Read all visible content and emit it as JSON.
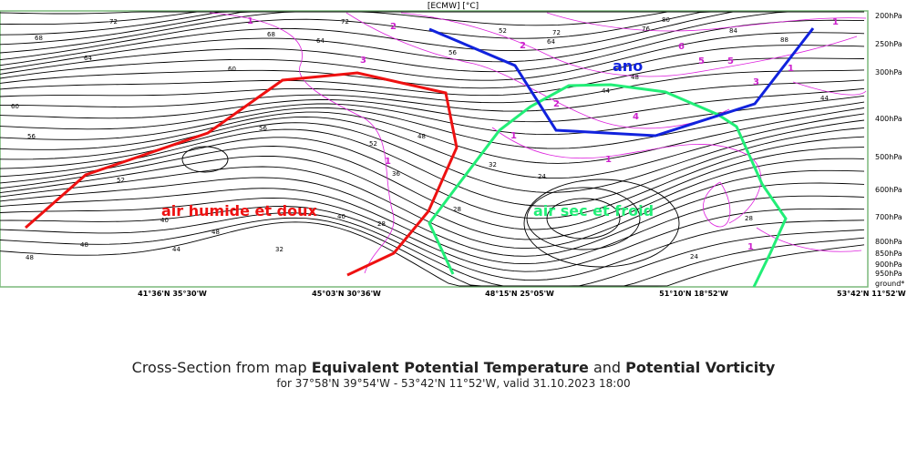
{
  "header_label": "[ECMW] [°C]",
  "pressure_levels": [
    "200hPa",
    "250hPa",
    "300hPa",
    "400hPa",
    "500hPa",
    "600hPa",
    "700hPa",
    "800hPa",
    "850hPa",
    "900hPa",
    "950hPa",
    "ground*"
  ],
  "x_ticks": [
    "41°36'N 35°30'W",
    "45°03'N 30°36'W",
    "48°15'N 25°05'W",
    "51°10'N 18°52'W",
    "53°42'N 11°52'W"
  ],
  "annotations": {
    "warm_air": "air humide et doux",
    "cold_air": "air sec et froid",
    "anomaly": "ano"
  },
  "contour_labels": [
    "72",
    "68",
    "64",
    "60",
    "56",
    "52",
    "48",
    "44",
    "40",
    "36",
    "32",
    "28",
    "24",
    "76",
    "80",
    "84",
    "88"
  ],
  "pv_labels": [
    "1",
    "2",
    "3",
    "4",
    "5",
    "6"
  ],
  "caption": {
    "prefix": "Cross-Section from map ",
    "field1": "Equivalent Potential Temperature",
    "connector": " and ",
    "field2": "Potential Vorticity",
    "subtitle": "for 37°58'N 39°54'W - 53°42'N 11°52'W, valid 31.10.2023 18:00"
  },
  "colors": {
    "theta_e": "#000000",
    "pv": "#dd22dd",
    "warm_line": "#ee1111",
    "cold_line": "#22ee77",
    "ano_line": "#1122dd",
    "frame": "#7ab87a"
  }
}
